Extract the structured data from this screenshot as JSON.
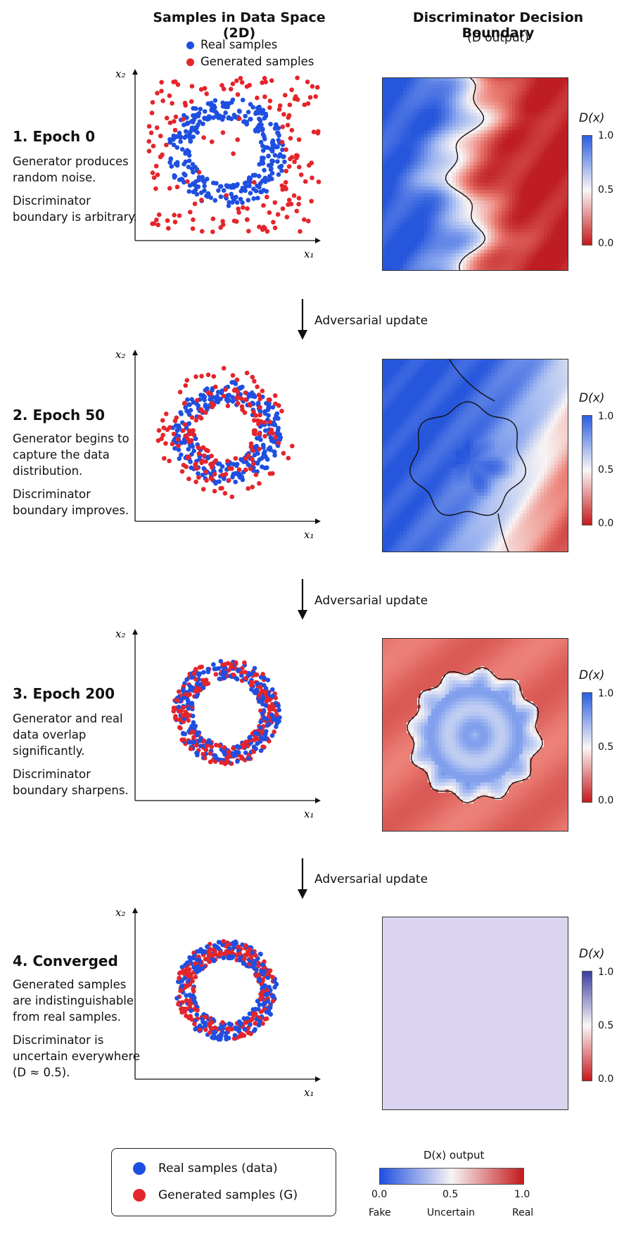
{
  "header": {
    "left_title": "Samples in Data Space (2D)",
    "right_title": "Discriminator Decision Boundary",
    "right_subtitle": "(D output)",
    "legend_real": "Real samples",
    "legend_generated": "Generated samples"
  },
  "axes": {
    "x_label": "x₁",
    "y_label": "x₂"
  },
  "colorbar": {
    "label": "D(x)",
    "ticks": [
      "1.0",
      "0.5",
      "0.0"
    ]
  },
  "colors": {
    "real": "#1f4fe0",
    "generated": "#e4252b",
    "fake_end": "#1f4fe0",
    "real_end": "#d01f22"
  },
  "arrow_label": "Adversarial update",
  "stages": [
    {
      "title": "1. Epoch 0",
      "lines": [
        "Generator produces random noise.",
        "Discriminator boundary is arbitrary."
      ],
      "real_ring": [
        0.6,
        1.0
      ],
      "generated": "uniform-noise",
      "heatmap": "arbitrary"
    },
    {
      "title": "2. Epoch 50",
      "lines": [
        "Generator begins to capture the data distribution.",
        "Discriminator boundary improves."
      ],
      "real_ring": [
        0.6,
        1.0
      ],
      "generated": "wide-ring",
      "heatmap": "improving"
    },
    {
      "title": "3. Epoch 200",
      "lines": [
        "Generator and real data overlap significantly.",
        "Discriminator boundary sharpens."
      ],
      "real_ring": [
        0.6,
        1.0
      ],
      "generated": "overlapping-ring",
      "heatmap": "sharp"
    },
    {
      "title": "4. Converged",
      "lines": [
        "Generated samples are indistinguishable from real samples.",
        "Discriminator is uncertain everywhere (D ≈ 0.5)."
      ],
      "real_ring": [
        0.6,
        1.0
      ],
      "generated": "matching-ring",
      "heatmap": "uniform",
      "d_value": 0.5
    }
  ],
  "bottom_legend": {
    "real": "Real samples (data)",
    "generated": "Generated samples (G)"
  },
  "bottom_colorbar": {
    "title": "D(x) output",
    "ticks": [
      "0.0",
      "0.5",
      "1.0"
    ],
    "labels": [
      "Fake",
      "Uncertain",
      "Real"
    ]
  }
}
